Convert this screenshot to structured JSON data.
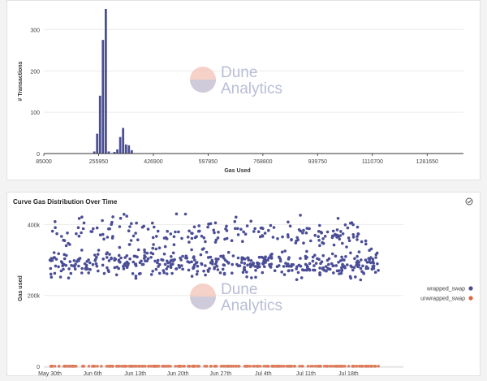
{
  "watermark": {
    "line1": "Dune",
    "line2": "Analytics"
  },
  "colors": {
    "bar": "#4b4e96",
    "wrapped": "#4b4e96",
    "unwrapped": "#e0663f",
    "grid": "#ececec",
    "axis": "#333333",
    "text": "#444444",
    "watermark": "#b9bdd6"
  },
  "chart_data": [
    {
      "type": "bar",
      "title": "",
      "xlabel": "Gas Used",
      "ylabel": "# Transactions",
      "ylim": [
        0,
        350
      ],
      "yticks": [
        0,
        100,
        200,
        300
      ],
      "xlim": [
        85000,
        1395000
      ],
      "xticks": [
        85000,
        255950,
        426900,
        597850,
        768800,
        939750,
        1110700,
        1281650
      ],
      "bin_width": 9000,
      "bins": [
        {
          "x": 238000,
          "count": 5
        },
        {
          "x": 247000,
          "count": 48
        },
        {
          "x": 256000,
          "count": 140
        },
        {
          "x": 265000,
          "count": 275
        },
        {
          "x": 274000,
          "count": 350
        },
        {
          "x": 283000,
          "count": 5
        },
        {
          "x": 301000,
          "count": 4
        },
        {
          "x": 310000,
          "count": 10
        },
        {
          "x": 319000,
          "count": 40
        },
        {
          "x": 328000,
          "count": 62
        },
        {
          "x": 337000,
          "count": 22
        },
        {
          "x": 346000,
          "count": 20
        },
        {
          "x": 355000,
          "count": 8
        }
      ],
      "grid": true
    },
    {
      "type": "scatter",
      "title": "Curve Gas Distribution Over Time",
      "xlabel": "",
      "ylabel": "Gas used",
      "ylim": [
        0,
        440000
      ],
      "yticks": [
        0,
        200000,
        400000
      ],
      "ytick_labels": [
        "0",
        "200k",
        "400k"
      ],
      "xlim": [
        "2021-05-29",
        "2021-07-27"
      ],
      "xticks": [
        "2021-05-30",
        "2021-06-06",
        "2021-06-13",
        "2021-06-20",
        "2021-06-27",
        "2021-07-04",
        "2021-07-11",
        "2021-07-18"
      ],
      "xtick_labels": [
        "May 30th",
        "Jun 6th",
        "Jun 13th",
        "Jun 20th",
        "Jun 27th",
        "Jul 4th",
        "Jul 11th",
        "Jul 18th"
      ],
      "legend_position": "right",
      "series": [
        {
          "name": "wrapped_swap",
          "clusters": [
            {
              "from": "2021-05-30",
              "to": "2021-07-23",
              "center": 290000,
              "spread": 18000,
              "count": 460
            },
            {
              "from": "2021-05-30",
              "to": "2021-07-21",
              "center": 375000,
              "spread": 22000,
              "count": 200
            }
          ]
        },
        {
          "name": "unwrapped_swap",
          "clusters": [
            {
              "from": "2021-05-30",
              "to": "2021-07-23",
              "center": 0,
              "spread": 0,
              "count": 260
            }
          ]
        }
      ]
    }
  ]
}
